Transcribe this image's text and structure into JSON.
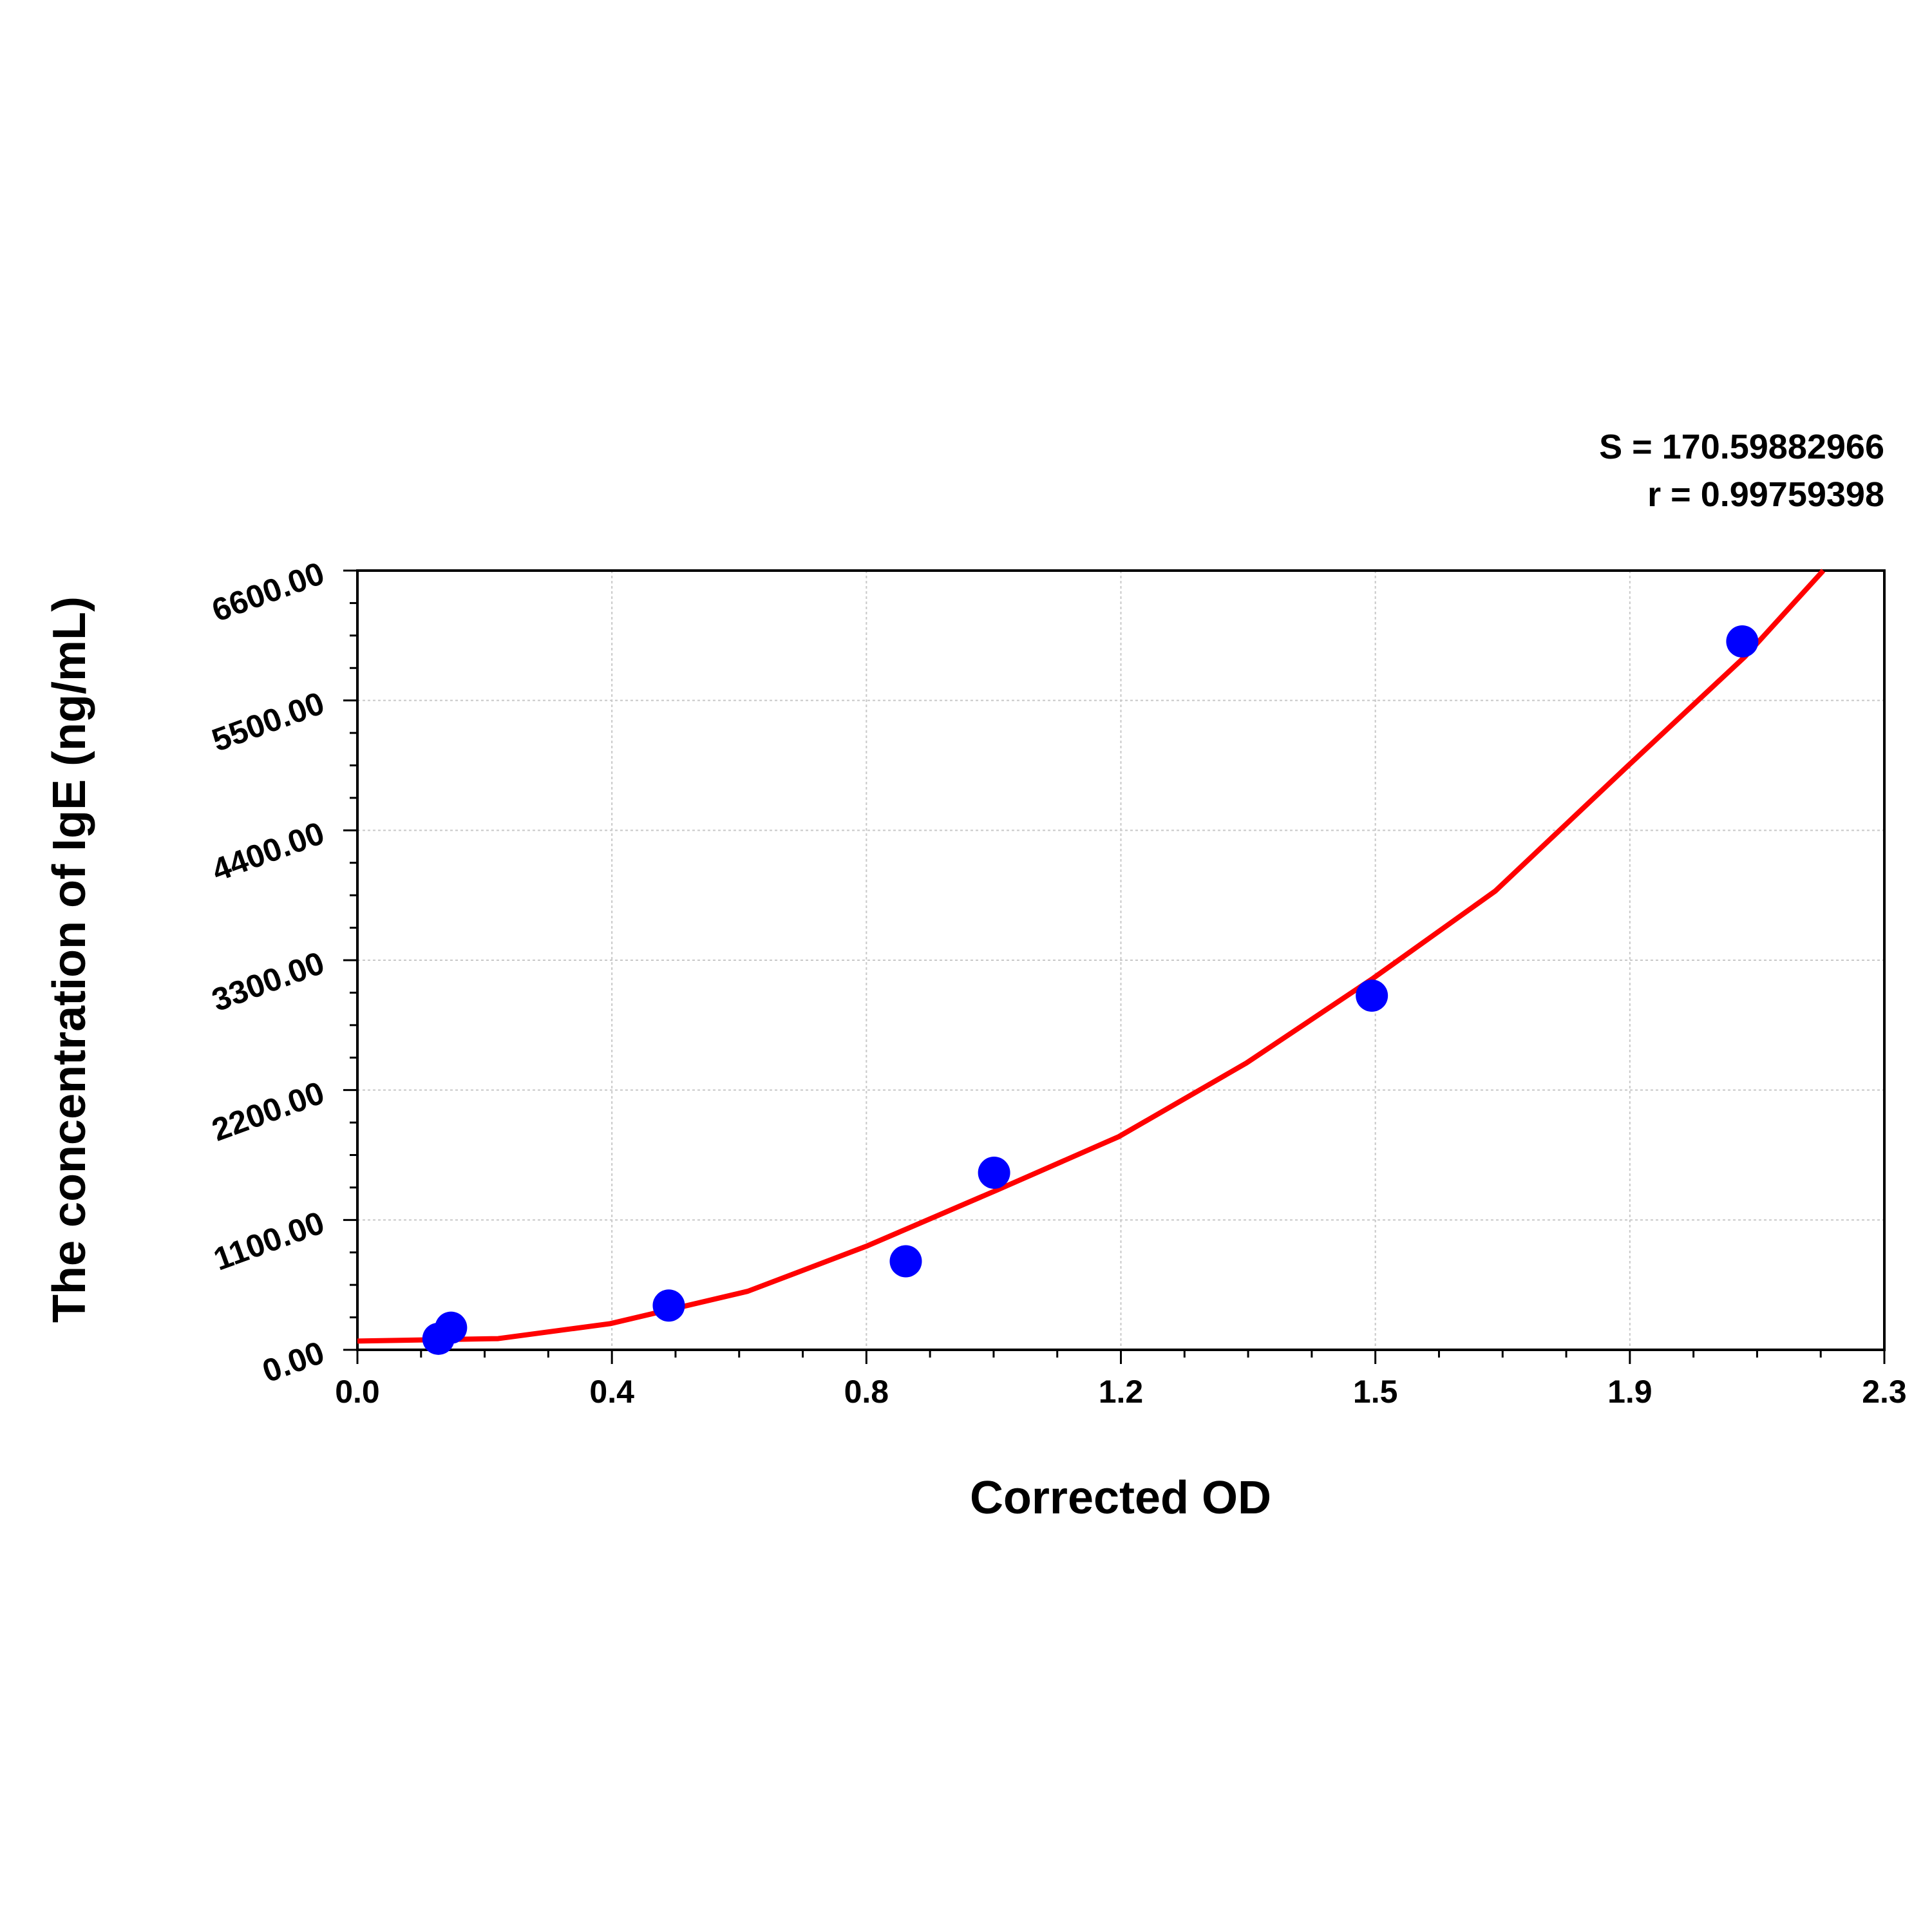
{
  "chart_data": {
    "type": "scatter",
    "x_label": "Corrected OD",
    "y_label": "The concentration of IgE (ng/mL)",
    "annotations": [
      "S = 170.59882966",
      "r = 0.99759398"
    ],
    "x": [
      0.122,
      0.141,
      0.469,
      0.826,
      0.959,
      1.528,
      2.086
    ],
    "values": [
      93.75,
      187.5,
      375,
      750,
      1500,
      3000,
      6000
    ],
    "color": "#0000ff",
    "fit": {
      "color": "#ff0000",
      "x": [
        0,
        0.212,
        0.381,
        0.588,
        0.766,
        0.963,
        1.147,
        1.339,
        1.53,
        1.714,
        1.913,
        2.09,
        2.208
      ],
      "values": [
        74,
        95,
        222,
        496,
        876,
        1352,
        1806,
        2429,
        3147,
        3886,
        4942,
        5871,
        6600
      ]
    },
    "xlim": [
      0,
      2.3
    ],
    "xticks": [
      {
        "value": 0,
        "label": "0.0"
      },
      {
        "value": 0.38333,
        "label": "0.4"
      },
      {
        "value": 0.76667,
        "label": "0.8"
      },
      {
        "value": 1.15,
        "label": "1.2"
      },
      {
        "value": 1.53333,
        "label": "1.5"
      },
      {
        "value": 1.91667,
        "label": "1.9"
      },
      2.3
    ],
    "ylim": [
      0,
      6600
    ],
    "yticks": [
      {
        "value": 0,
        "label": "0.00"
      },
      {
        "value": 1100,
        "label": "1100.00"
      },
      {
        "value": 2200,
        "label": "2200.00"
      },
      {
        "value": 3300,
        "label": "3300.00"
      },
      {
        "value": 4400,
        "label": "4400.00"
      },
      {
        "value": 5500,
        "label": "5500.00"
      },
      {
        "value": 6600,
        "label": "6600.00"
      }
    ],
    "grid": true
  }
}
